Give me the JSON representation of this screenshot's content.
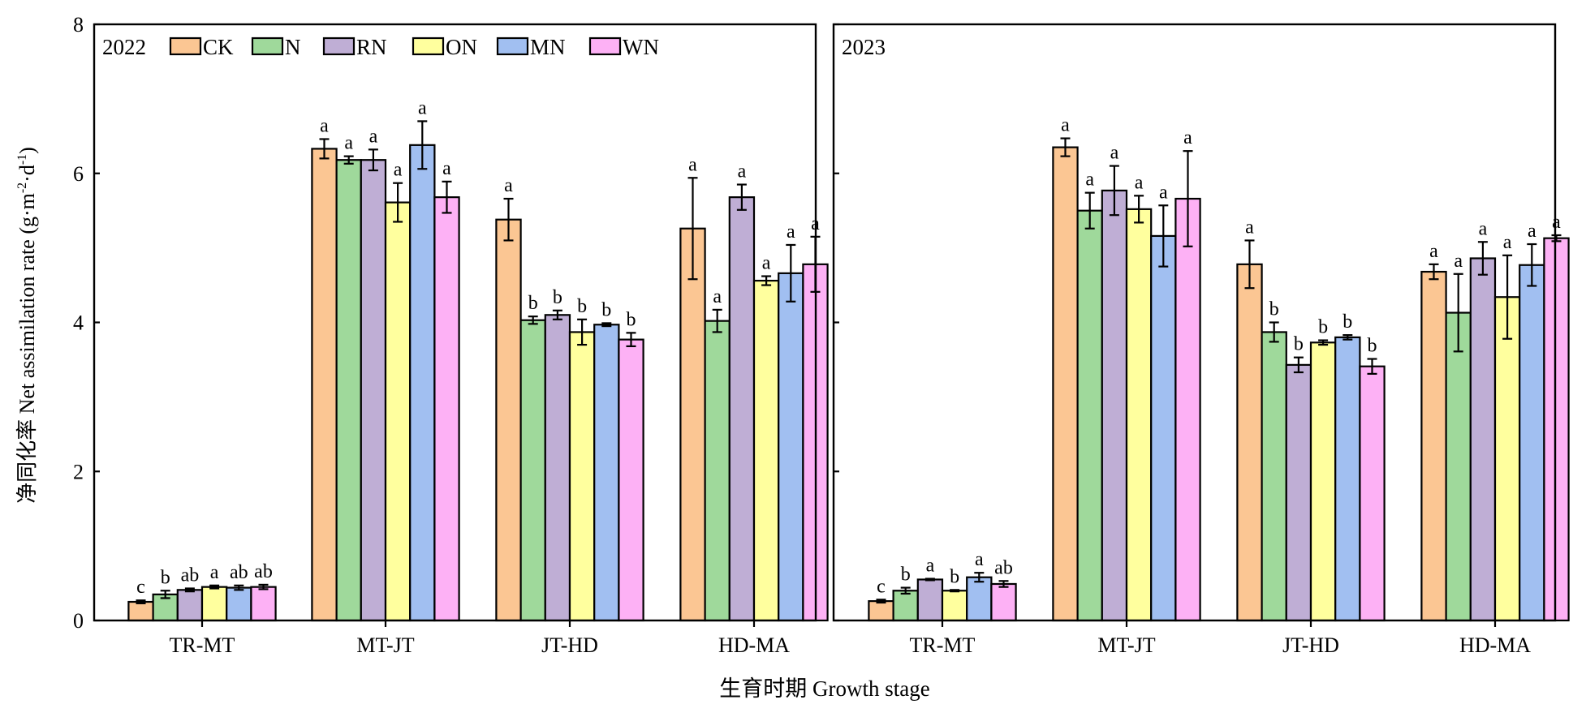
{
  "chart_data": {
    "type": "bar",
    "ylabel": "净同化率 Net assimilation rate (g·m⁻²·d⁻¹)",
    "ylabel_parts": {
      "prefix": "净同化率 Net assimilation rate (g·m",
      "sup1": "-2",
      "mid": "·d",
      "sup2": "-1",
      "suffix": ")"
    },
    "xlabel": "生育时期 Growth stage",
    "ylim": [
      0,
      8
    ],
    "yticks": [
      "0",
      "2",
      "4",
      "6",
      "8"
    ],
    "categories": [
      "TR-MT",
      "MT-JT",
      "JT-HD",
      "HD-MA"
    ],
    "series_names": [
      "CK",
      "N",
      "RN",
      "ON",
      "MN",
      "WN"
    ],
    "series_colors": [
      "#FBC693",
      "#9FD99B",
      "#BFAED5",
      "#FFFF9E",
      "#A1BFF1",
      "#FDB1F5"
    ],
    "legend_position": "top",
    "grid": false,
    "panels": [
      {
        "title": "2022",
        "series": [
          {
            "name": "CK",
            "values": [
              0.25,
              6.33,
              5.38,
              5.26
            ],
            "errors": [
              0.02,
              0.13,
              0.28,
              0.68
            ],
            "letters": [
              "c",
              "a",
              "a",
              "a"
            ]
          },
          {
            "name": "N",
            "values": [
              0.35,
              6.18,
              4.03,
              4.02
            ],
            "errors": [
              0.05,
              0.05,
              0.05,
              0.15
            ],
            "letters": [
              "b",
              "a",
              "b",
              "a"
            ]
          },
          {
            "name": "RN",
            "values": [
              0.41,
              6.18,
              4.1,
              5.68
            ],
            "errors": [
              0.02,
              0.14,
              0.06,
              0.17
            ],
            "letters": [
              "ab",
              "a",
              "b",
              "a"
            ]
          },
          {
            "name": "ON",
            "values": [
              0.45,
              5.61,
              3.87,
              4.56
            ],
            "errors": [
              0.02,
              0.26,
              0.17,
              0.06
            ],
            "letters": [
              "a",
              "a",
              "b",
              "a"
            ]
          },
          {
            "name": "MN",
            "values": [
              0.44,
              6.38,
              3.97,
              4.66
            ],
            "errors": [
              0.03,
              0.32,
              0.02,
              0.38
            ],
            "letters": [
              "ab",
              "a",
              "b",
              "a"
            ]
          },
          {
            "name": "WN",
            "values": [
              0.45,
              5.68,
              3.77,
              4.78
            ],
            "errors": [
              0.03,
              0.21,
              0.09,
              0.37
            ],
            "letters": [
              "ab",
              "a",
              "b",
              "a"
            ]
          }
        ]
      },
      {
        "title": "2023",
        "series": [
          {
            "name": "CK",
            "values": [
              0.26,
              6.35,
              4.78,
              4.68
            ],
            "errors": [
              0.02,
              0.12,
              0.32,
              0.1
            ],
            "letters": [
              "c",
              "a",
              "a",
              "a"
            ]
          },
          {
            "name": "N",
            "values": [
              0.4,
              5.5,
              3.87,
              4.13
            ],
            "errors": [
              0.04,
              0.24,
              0.13,
              0.52
            ],
            "letters": [
              "b",
              "a",
              "b",
              "a"
            ]
          },
          {
            "name": "RN",
            "values": [
              0.55,
              5.77,
              3.43,
              4.86
            ],
            "errors": [
              0.01,
              0.33,
              0.1,
              0.22
            ],
            "letters": [
              "a",
              "a",
              "b",
              "a"
            ]
          },
          {
            "name": "ON",
            "values": [
              0.4,
              5.52,
              3.73,
              4.34
            ],
            "errors": [
              0.01,
              0.18,
              0.03,
              0.56
            ],
            "letters": [
              "b",
              "a",
              "b",
              "a"
            ]
          },
          {
            "name": "MN",
            "values": [
              0.58,
              5.16,
              3.8,
              4.77
            ],
            "errors": [
              0.06,
              0.41,
              0.03,
              0.28
            ],
            "letters": [
              "a",
              "a",
              "b",
              "a"
            ]
          },
          {
            "name": "WN",
            "values": [
              0.49,
              5.66,
              3.41,
              5.13
            ],
            "errors": [
              0.04,
              0.64,
              0.1,
              0.04
            ],
            "letters": [
              "ab",
              "a",
              "b",
              "a"
            ]
          }
        ]
      }
    ]
  }
}
